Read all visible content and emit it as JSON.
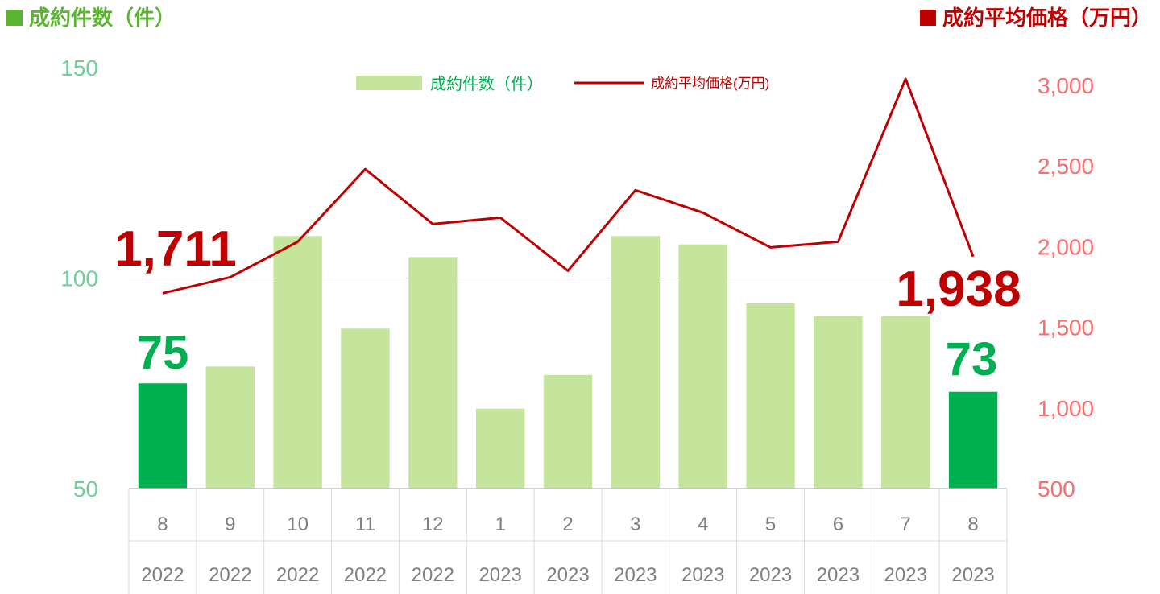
{
  "header": {
    "left_title": "成約件数（件）",
    "right_title": "成約平均価格（万円）",
    "left_color": "#5bb531",
    "right_color": "#c00000"
  },
  "chart_data": {
    "type": "bar",
    "months": [
      "8",
      "9",
      "10",
      "11",
      "12",
      "1",
      "2",
      "3",
      "4",
      "5",
      "6",
      "7",
      "8"
    ],
    "years": [
      "2022",
      "2022",
      "2022",
      "2022",
      "2022",
      "2023",
      "2023",
      "2023",
      "2023",
      "2023",
      "2023",
      "2023",
      "2023"
    ],
    "series": [
      {
        "name": "成約件数（件）",
        "type": "bar",
        "axis": "left",
        "values": [
          75,
          79,
          110,
          88,
          105,
          69,
          77,
          110,
          108,
          94,
          91,
          91,
          73
        ],
        "color": "#c5e59c",
        "highlight_color": "#00b050",
        "highlight_indices": [
          0,
          12
        ]
      },
      {
        "name": "成約平均価格(万円)",
        "type": "line",
        "axis": "right",
        "values": [
          1711,
          1810,
          2030,
          2480,
          2140,
          2180,
          1850,
          2350,
          2210,
          1995,
          2030,
          3040,
          1938
        ],
        "color": "#c00000"
      }
    ],
    "left_axis": {
      "ticks": [
        "50",
        "100",
        "150"
      ],
      "ylim": [
        50,
        150
      ],
      "color": "#6fcf97"
    },
    "right_axis": {
      "ticks": [
        "500",
        "1,000",
        "1,500",
        "2,000",
        "2,500",
        "3,000"
      ],
      "ylim": [
        500,
        3000
      ],
      "color": "#ff6b6b"
    },
    "annotations": {
      "count_first": "75",
      "count_last": "73",
      "price_first": "1,711",
      "price_last": "1,938"
    },
    "gridlines": [
      100
    ]
  }
}
